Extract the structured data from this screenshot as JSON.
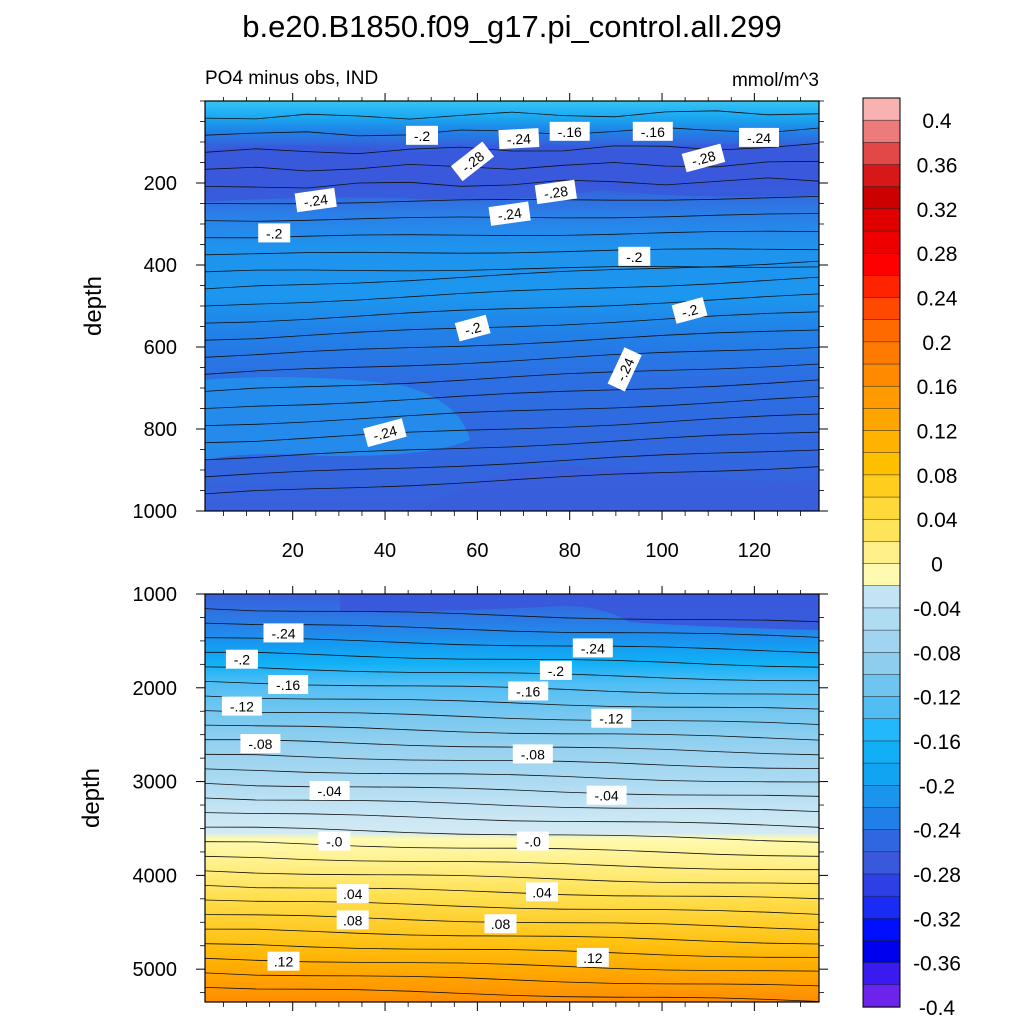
{
  "title": "b.e20.B1850.f09_g17.pi_control.all.299",
  "chart_data": [
    {
      "type": "heatmap",
      "panel": "upper",
      "left_label": "PO4 minus obs, IND",
      "right_label": "mmol/m^3",
      "ylabel": "depth",
      "xlabel": "",
      "xlim": [
        1,
        134
      ],
      "ylim": [
        1000,
        0
      ],
      "x_ticks": [
        20,
        40,
        60,
        80,
        100,
        120
      ],
      "y_ticks": [
        200,
        400,
        600,
        800,
        1000
      ],
      "contour_labels": [
        {
          "text": "-.2",
          "x": 48,
          "y": 85,
          "angle": 0
        },
        {
          "text": "-.28",
          "x": 59,
          "y": 148,
          "angle": -38
        },
        {
          "text": "-.24",
          "x": 69,
          "y": 93,
          "angle": -3
        },
        {
          "text": "-.16",
          "x": 80,
          "y": 75,
          "angle": 0
        },
        {
          "text": "-.16",
          "x": 98,
          "y": 75,
          "angle": 0
        },
        {
          "text": "-.28",
          "x": 109,
          "y": 140,
          "angle": -15
        },
        {
          "text": "-.24",
          "x": 121,
          "y": 90,
          "angle": 0
        },
        {
          "text": "-.24",
          "x": 25,
          "y": 243,
          "angle": -8
        },
        {
          "text": "-.28",
          "x": 77,
          "y": 223,
          "angle": -8
        },
        {
          "text": "-.24",
          "x": 67,
          "y": 276,
          "angle": -8
        },
        {
          "text": "-.2",
          "x": 16,
          "y": 323,
          "angle": 0
        },
        {
          "text": "-.2",
          "x": 94,
          "y": 380,
          "angle": 0
        },
        {
          "text": "-.2",
          "x": 59,
          "y": 555,
          "angle": -15
        },
        {
          "text": "-.2",
          "x": 106,
          "y": 512,
          "angle": -15
        },
        {
          "text": "-.24",
          "x": 92,
          "y": 655,
          "angle": -65
        },
        {
          "text": "-.24",
          "x": 40,
          "y": 810,
          "angle": -15
        }
      ]
    },
    {
      "type": "heatmap",
      "panel": "lower",
      "ylabel": "depth",
      "xlabel": "",
      "xlim": [
        1,
        134
      ],
      "ylim": [
        5350,
        1000
      ],
      "x_ticks": [
        20,
        40,
        60,
        80,
        100,
        120
      ],
      "y_ticks": [
        1000,
        2000,
        3000,
        4000,
        5000
      ],
      "contour_labels": [
        {
          "text": "-.24",
          "x": 18,
          "y": 1420,
          "angle": 0
        },
        {
          "text": "-.2",
          "x": 9,
          "y": 1700,
          "angle": 0
        },
        {
          "text": "-.16",
          "x": 19,
          "y": 1970,
          "angle": 0
        },
        {
          "text": "-.12",
          "x": 9,
          "y": 2200,
          "angle": 0
        },
        {
          "text": "-.08",
          "x": 13,
          "y": 2600,
          "angle": 0
        },
        {
          "text": "-.04",
          "x": 28,
          "y": 3100,
          "angle": 0
        },
        {
          "text": "-.0",
          "x": 29,
          "y": 3640,
          "angle": 0
        },
        {
          "text": ".04",
          "x": 33,
          "y": 4200,
          "angle": 0
        },
        {
          "text": ".08",
          "x": 33,
          "y": 4480,
          "angle": 0
        },
        {
          "text": ".12",
          "x": 18,
          "y": 4920,
          "angle": 0
        },
        {
          "text": "-.24",
          "x": 85,
          "y": 1580,
          "angle": 0
        },
        {
          "text": "-.2",
          "x": 77,
          "y": 1820,
          "angle": 0
        },
        {
          "text": "-.16",
          "x": 71,
          "y": 2040,
          "angle": 0
        },
        {
          "text": "-.12",
          "x": 89,
          "y": 2330,
          "angle": 0
        },
        {
          "text": "-.08",
          "x": 72,
          "y": 2710,
          "angle": 0
        },
        {
          "text": "-.04",
          "x": 88,
          "y": 3150,
          "angle": 0
        },
        {
          "text": "-.0",
          "x": 72,
          "y": 3640,
          "angle": 0
        },
        {
          "text": ".04",
          "x": 74,
          "y": 4180,
          "angle": 0
        },
        {
          "text": ".08",
          "x": 65,
          "y": 4520,
          "angle": 0
        },
        {
          "text": ".12",
          "x": 85,
          "y": 4880,
          "angle": 0
        }
      ]
    }
  ],
  "colorbar": {
    "orientation": "vertical",
    "levels": [
      -0.42,
      -0.4,
      -0.38,
      -0.36,
      -0.34,
      -0.32,
      -0.3,
      -0.28,
      -0.26,
      -0.24,
      -0.22,
      -0.2,
      -0.18,
      -0.16,
      -0.14,
      -0.12,
      -0.1,
      -0.08,
      -0.06,
      -0.04,
      -0.02,
      0,
      0.02,
      0.04,
      0.06,
      0.08,
      0.1,
      0.12,
      0.14,
      0.16,
      0.18,
      0.2,
      0.22,
      0.24,
      0.26,
      0.28,
      0.3,
      0.32,
      0.34,
      0.36,
      0.38,
      0.4,
      0.42
    ],
    "tick_labels": [
      "0.4",
      "0.36",
      "0.32",
      "0.28",
      "0.24",
      "0.2",
      "0.16",
      "0.12",
      "0.08",
      "0.04",
      "0",
      "-0.04",
      "-0.08",
      "-0.12",
      "-0.16",
      "-0.2",
      "-0.24",
      "-0.28",
      "-0.32",
      "-0.36",
      "-0.4"
    ],
    "colors_top_to_bottom": [
      "#f8b2b2",
      "#ee7b7b",
      "#e24848",
      "#d81818",
      "#cc0000",
      "#e00000",
      "#ee0000",
      "#ff0000",
      "#ff2400",
      "#ff4800",
      "#ff6a00",
      "#ff7a00",
      "#ff8a00",
      "#ff9a00",
      "#ffa500",
      "#ffb300",
      "#ffc000",
      "#ffcd1e",
      "#ffd83a",
      "#ffe35a",
      "#fff08a",
      "#fffab0",
      "#c4e4f4",
      "#b0dcf2",
      "#a0d4f0",
      "#8fcdee",
      "#70c4f0",
      "#50bef5",
      "#22b8fa",
      "#12aef8",
      "#10a4f2",
      "#1a94ec",
      "#2080e8",
      "#3066e0",
      "#3a58dc",
      "#2c40e6",
      "#1a2cf4",
      "#0010ff",
      "#0000ee",
      "#3a1aee",
      "#6c24ec"
    ]
  }
}
